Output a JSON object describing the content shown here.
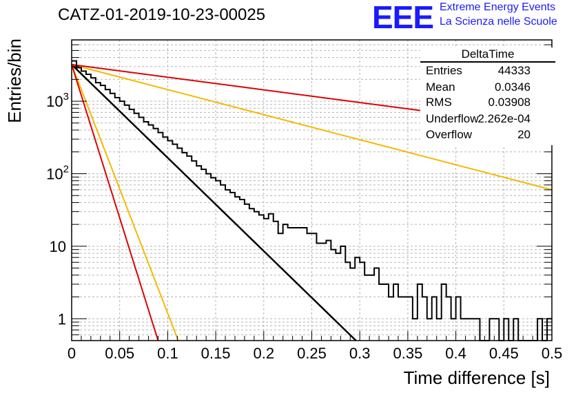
{
  "title": "CATZ-01-2019-10-23-00025",
  "logo": {
    "mark": "EEE",
    "line1": "Extreme Energy Events",
    "line2": "La Scienza nelle Scuole",
    "color": "#1a1aff"
  },
  "stats_box": {
    "title": "DeltaTime",
    "rows": [
      {
        "label": "Entries",
        "value": "44333"
      },
      {
        "label": "Mean",
        "value": "0.0346"
      },
      {
        "label": "RMS",
        "value": "0.03908"
      },
      {
        "label": "Underflow",
        "value": "2.262e-04"
      },
      {
        "label": "Overflow",
        "value": "20"
      }
    ]
  },
  "chart_data": {
    "type": "line",
    "title": "CATZ-01-2019-10-23-00025",
    "xlabel": "Time difference [s]",
    "ylabel": "Entries/bin",
    "xlim": [
      0,
      0.5
    ],
    "ylim": [
      0.5,
      7000
    ],
    "yscale": "log",
    "grid": true,
    "x_ticks": [
      0,
      0.05,
      0.1,
      0.15,
      0.2,
      0.25,
      0.3,
      0.35,
      0.4,
      0.45,
      0.5
    ],
    "x_tick_labels": [
      "0",
      "0.05",
      "0.1",
      "0.15",
      "0.2",
      "0.25",
      "0.3",
      "0.35",
      "0.4",
      "0.45",
      "0.5"
    ],
    "y_ticks": [
      1,
      10,
      100,
      1000
    ],
    "y_tick_labels": [
      "1",
      "10",
      "10^2",
      "10^3"
    ],
    "histogram": {
      "name": "DeltaTime",
      "bin_width": 0.005,
      "color": "#000000",
      "counts": [
        3600,
        2900,
        2600,
        2350,
        2100,
        1800,
        1650,
        1450,
        1280,
        1120,
        1000,
        880,
        770,
        680,
        600,
        520,
        470,
        420,
        370,
        320,
        285,
        255,
        225,
        195,
        175,
        150,
        128,
        115,
        100,
        88,
        80,
        70,
        60,
        55,
        48,
        44,
        38,
        33,
        30,
        27,
        24,
        28,
        22,
        15,
        20,
        18,
        18,
        18,
        18,
        15,
        15,
        11,
        11,
        12,
        9,
        8,
        10,
        6,
        5,
        7,
        6,
        4,
        4,
        5,
        3,
        3,
        2,
        3,
        2,
        2,
        2,
        1,
        3,
        2,
        1,
        2,
        1,
        3,
        2,
        1,
        2,
        1,
        1,
        1,
        1,
        0,
        0,
        1,
        1,
        0,
        1,
        0,
        1,
        0,
        0,
        0,
        0,
        1,
        0,
        1
      ]
    },
    "fits": [
      {
        "name": "fit",
        "color": "#000000",
        "y0": 3200,
        "y1": 0.5,
        "x_at_y1": 0.296
      },
      {
        "name": "fit-orange-steep",
        "color": "#f5b800",
        "y0": 3200,
        "y1": 0.5,
        "x_at_y1": 0.111
      },
      {
        "name": "fit-red-steep",
        "color": "#dd0000",
        "y0": 3200,
        "y1": 0.5,
        "x_at_y1": 0.09
      },
      {
        "name": "fit-orange-shallow",
        "color": "#f5b800",
        "y0": 3200,
        "y1": 60,
        "x_at_y1": 0.5
      },
      {
        "name": "fit-red-shallow",
        "color": "#dd0000",
        "y0": 3200,
        "y1": 430,
        "x_at_y1": 0.5
      }
    ]
  }
}
